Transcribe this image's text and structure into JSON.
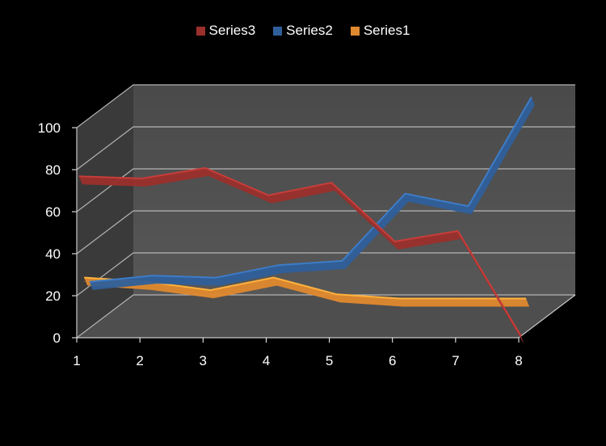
{
  "chart_data": {
    "type": "line",
    "x": [
      1,
      2,
      3,
      4,
      5,
      6,
      7,
      8
    ],
    "ylim": [
      0,
      100
    ],
    "yticks": [
      "0",
      "20",
      "40",
      "60",
      "80",
      "100"
    ],
    "xticks": [
      "1",
      "2",
      "3",
      "4",
      "5",
      "6",
      "7",
      "8"
    ],
    "grid": true,
    "legend_position": "top",
    "series": [
      {
        "name": "Series3",
        "color": "#9a2f2c",
        "values": [
          76,
          75,
          80,
          67,
          73,
          45,
          50,
          0
        ]
      },
      {
        "name": "Series2",
        "color": "#2f5f9a",
        "values": [
          22,
          25,
          24,
          30,
          32,
          64,
          58,
          110
        ]
      },
      {
        "name": "Series1",
        "color": "#e0892e",
        "values": [
          26,
          24,
          20,
          26,
          18,
          16,
          16,
          16
        ]
      }
    ]
  }
}
